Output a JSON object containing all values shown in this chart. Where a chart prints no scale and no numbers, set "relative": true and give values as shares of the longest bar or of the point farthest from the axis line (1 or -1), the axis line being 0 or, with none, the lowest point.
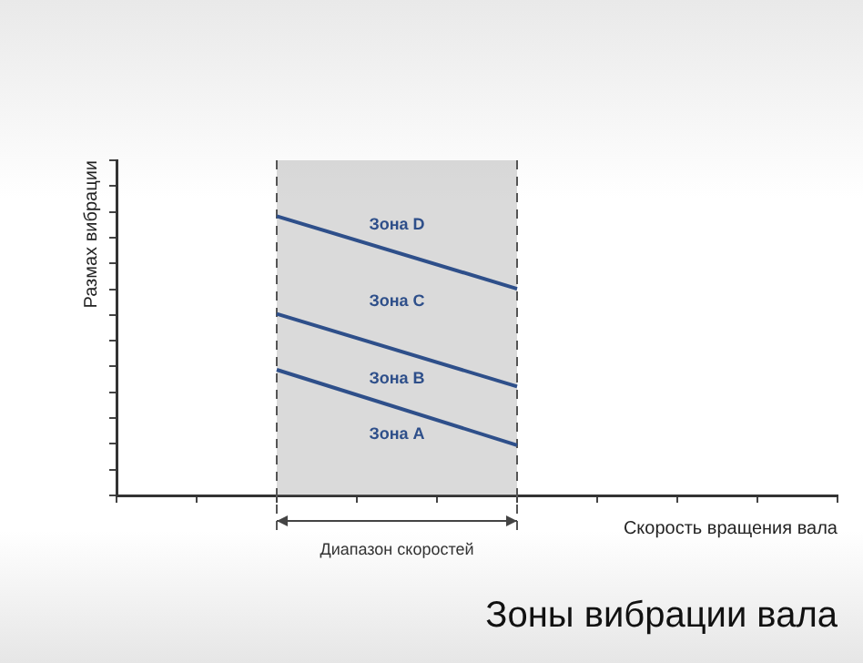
{
  "chart_data": {
    "type": "line",
    "title": "Зоны вибрации вала",
    "xlabel": "Скорость вращения вала",
    "ylabel": "Размах вибрации",
    "categories": [
      null,
      null,
      null,
      null,
      null,
      null,
      null,
      null,
      null,
      null
    ],
    "relative": true,
    "series": [
      {
        "color": "#2e4f8a",
        "values": [
          null,
          null,
          1,
          null,
          null,
          0.74,
          null,
          null,
          null,
          null
        ]
      },
      {
        "color": "#2e4f8a",
        "values": [
          null,
          null,
          0.65,
          null,
          null,
          0.39,
          null,
          null,
          null,
          null
        ]
      },
      {
        "color": "#2e4f8a",
        "values": [
          null,
          null,
          0.45,
          null,
          null,
          0.18,
          null,
          null,
          null,
          null
        ]
      }
    ],
    "annotations": [
      "Зона D",
      "Зона C",
      "Зона B",
      "Зона A",
      "Диапазон скоростей"
    ],
    "legend": false,
    "grid": false,
    "tick_labels": false,
    "marker": "none",
    "line_style": "solid"
  }
}
